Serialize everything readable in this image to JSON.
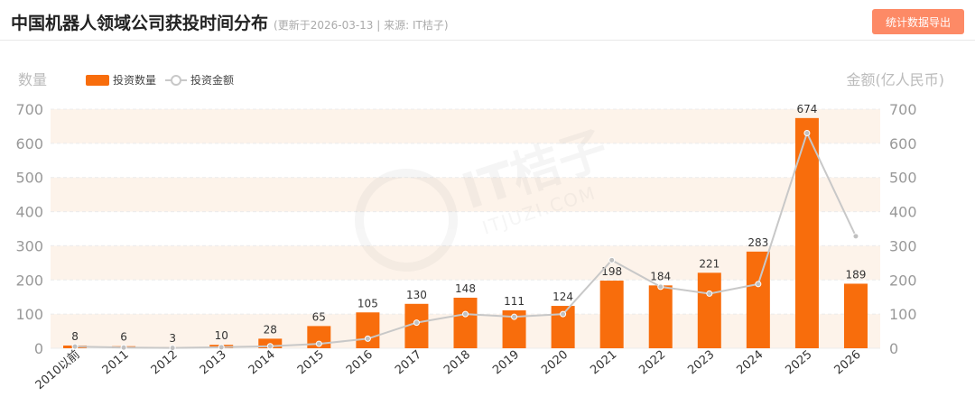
{
  "header": {
    "title": "中国机器人领域公司获投时间分布",
    "subtitle": "(更新于2026-03-13 | 来源: IT桔子)",
    "export_label": "统计数据导出"
  },
  "watermark": {
    "brand": "IT桔子",
    "url": "ITJUZI.COM"
  },
  "colors": {
    "bar": "#f86d0c",
    "line": "#c8c8c8",
    "band": "#fdf3ea",
    "accent_button": "#fd8a66"
  },
  "chart_data": {
    "type": "bar",
    "categories": [
      "2010以前",
      "2011",
      "2012",
      "2013",
      "2014",
      "2015",
      "2016",
      "2017",
      "2018",
      "2019",
      "2020",
      "2021",
      "2022",
      "2023",
      "2024",
      "2025",
      "2026"
    ],
    "series": [
      {
        "name": "投资数量",
        "type": "bar",
        "axis": "left",
        "values": [
          8,
          6,
          3,
          10,
          28,
          65,
          105,
          130,
          148,
          111,
          124,
          198,
          184,
          221,
          283,
          674,
          189
        ]
      },
      {
        "name": "投资金额",
        "type": "line",
        "axis": "right",
        "values": [
          5,
          2,
          1,
          3,
          6,
          13,
          28,
          75,
          100,
          92,
          100,
          258,
          180,
          160,
          188,
          630,
          328
        ]
      }
    ],
    "ylabel": "数量",
    "ylabel_right": "金额(亿人民币)",
    "ylim": [
      0,
      700
    ],
    "ylim_right": [
      0,
      700
    ],
    "yticks": [
      0,
      100,
      200,
      300,
      400,
      500,
      600,
      700
    ],
    "legend": "top-left",
    "grid": true
  }
}
